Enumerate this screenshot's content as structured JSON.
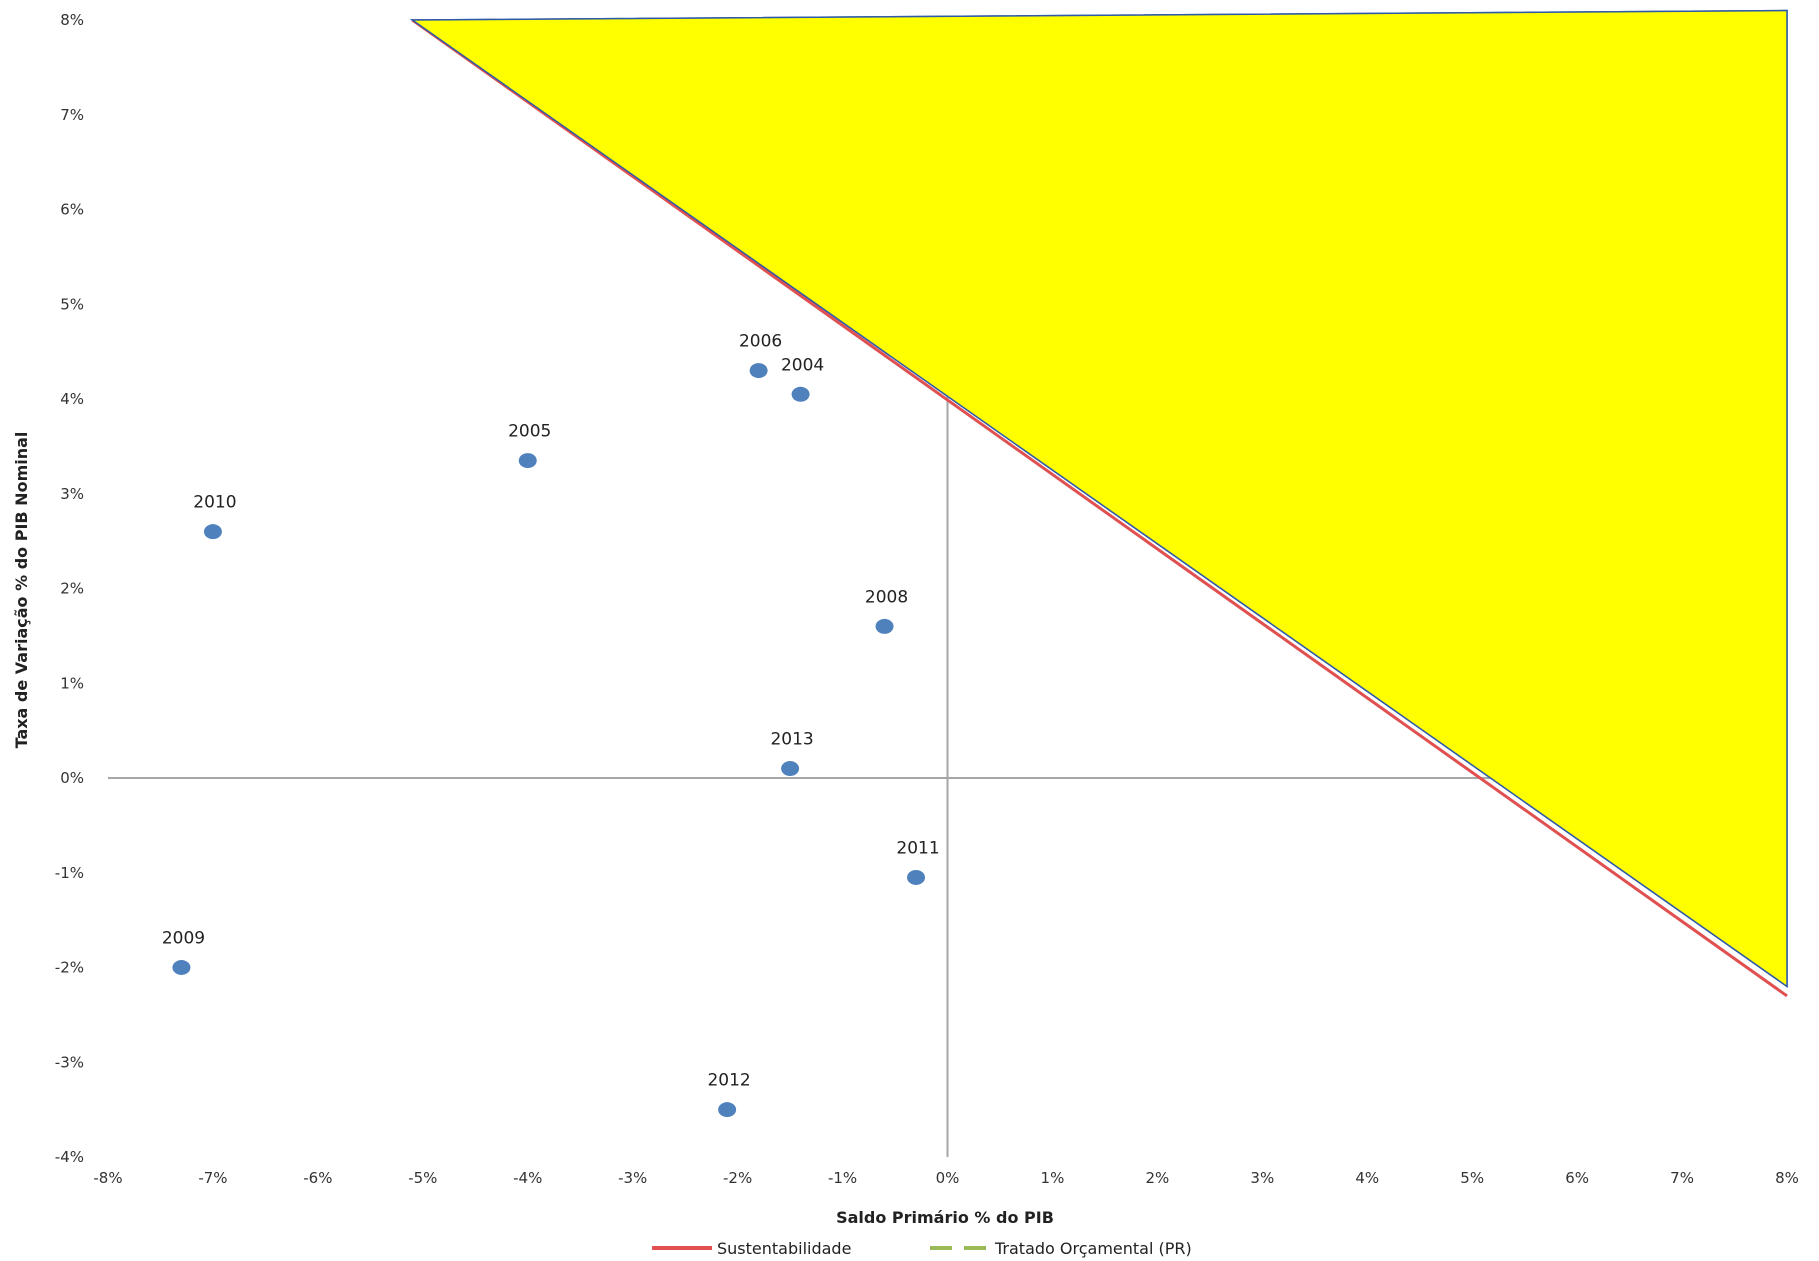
{
  "chart_data": {
    "type": "scatter",
    "xlabel": "Saldo Primário % do PIB",
    "ylabel": "Taxa de Variação % do PIB Nominal",
    "xlim": [
      -8,
      8
    ],
    "ylim": [
      -4,
      8
    ],
    "x_ticks": [
      "-8%",
      "-7%",
      "-6%",
      "-5%",
      "-4%",
      "-3%",
      "-2%",
      "-1%",
      "0%",
      "1%",
      "2%",
      "3%",
      "4%",
      "5%",
      "6%",
      "7%",
      "8%"
    ],
    "y_ticks": [
      "8%",
      "7%",
      "6%",
      "5%",
      "4%",
      "3%",
      "2%",
      "1%",
      "0%",
      "-1%",
      "-2%",
      "-3%",
      "-4%"
    ],
    "grid": false,
    "legend_position": "bottom",
    "points": [
      {
        "label": "2004",
        "x": -1.4,
        "y": 4.05
      },
      {
        "label": "2005",
        "x": -4.0,
        "y": 3.35
      },
      {
        "label": "2006",
        "x": -1.8,
        "y": 4.3
      },
      {
        "label": "2008",
        "x": -0.6,
        "y": 1.6
      },
      {
        "label": "2009",
        "x": -7.3,
        "y": -2.0
      },
      {
        "label": "2010",
        "x": -7.0,
        "y": 2.6
      },
      {
        "label": "2011",
        "x": -0.3,
        "y": -1.05
      },
      {
        "label": "2012",
        "x": -2.1,
        "y": -3.5
      },
      {
        "label": "2013",
        "x": -1.5,
        "y": 0.1
      }
    ],
    "series": [
      {
        "name": "Sustentabilidade",
        "type": "line",
        "color": "#e05050",
        "x": [
          -5.1,
          8.0
        ],
        "y": [
          8.0,
          -2.3
        ]
      },
      {
        "name": "Tratado Orçamental (PR)",
        "type": "line",
        "color": "#9bbb59",
        "dashed": true,
        "x": [],
        "y": []
      }
    ],
    "shaded_region": {
      "color": "#ffff00",
      "border": "#2e5aa8",
      "x": [
        -5.1,
        8.0,
        8.0
      ],
      "y": [
        8.0,
        8.1,
        -2.2
      ]
    },
    "point_color": "#4f81bd"
  }
}
